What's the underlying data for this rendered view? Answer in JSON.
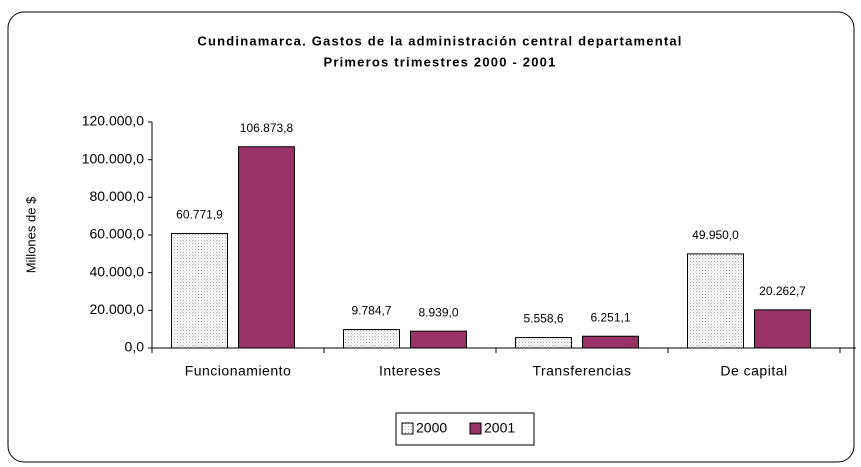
{
  "chart_data": {
    "type": "bar",
    "title": "Cundinamarca. Gastos de la administración central departamental",
    "subtitle": "Primeros trimestres 2000 - 2001",
    "y_label": "Millones de $",
    "categories": [
      "Funcionamiento",
      "Intereses",
      "Transferencias",
      "De capital"
    ],
    "series": [
      {
        "name": "2000",
        "color": "#e6e6e6",
        "values": [
          60771.9,
          9784.7,
          5558.6,
          49950.0
        ],
        "value_labels": [
          "60.771,9",
          "9.784,7",
          "5.558,6",
          "49.950,0"
        ]
      },
      {
        "name": "2001",
        "color": "#993366",
        "values": [
          106873.8,
          8939.0,
          6251.1,
          20262.7
        ],
        "value_labels": [
          "106.873,8",
          "8.939,0",
          "6.251,1",
          "20.262,7"
        ]
      }
    ],
    "ylim": [
      0,
      120000
    ],
    "yticks": [
      {
        "value": 0,
        "label": "0,0"
      },
      {
        "value": 20000,
        "label": "20.000,0"
      },
      {
        "value": 40000,
        "label": "40.000,0"
      },
      {
        "value": 60000,
        "label": "60.000,0"
      },
      {
        "value": 80000,
        "label": "80.000,0"
      },
      {
        "value": 100000,
        "label": "100.000,0"
      },
      {
        "value": 120000,
        "label": "120.000,0"
      }
    ],
    "legend": "bottom"
  }
}
